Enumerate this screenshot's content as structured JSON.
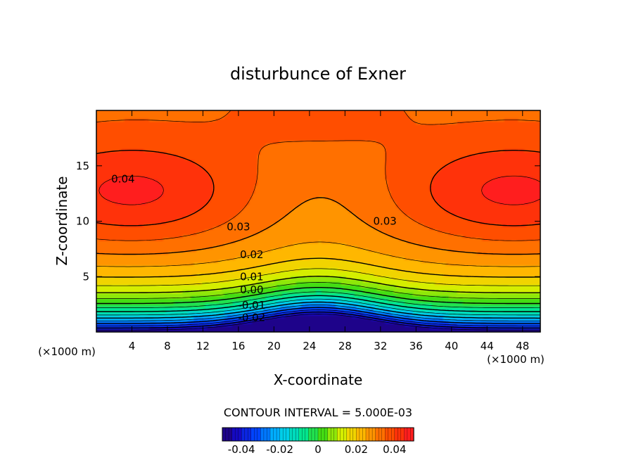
{
  "chart_data": {
    "type": "heatmap",
    "title": "disturbunce of Exner",
    "xlabel": "X-coordinate",
    "ylabel": "Z-coordinate",
    "x_unit": "(×1000 m)",
    "z_unit": "(×1000 m)",
    "xlim": [
      0,
      50
    ],
    "ylim": [
      0,
      20
    ],
    "x_ticks": [
      4,
      8,
      12,
      16,
      20,
      24,
      28,
      32,
      36,
      40,
      44,
      48
    ],
    "y_ticks": [
      5,
      10,
      15
    ],
    "contour_interval_label": "CONTOUR INTERVAL = 5.000E-03",
    "contour_labels": [
      {
        "text": "0.04",
        "x": 3.0,
        "z": 13.8
      },
      {
        "text": "0.03",
        "x": 16.0,
        "z": 9.5
      },
      {
        "text": "0.03",
        "x": 32.5,
        "z": 10.0
      },
      {
        "text": "0.02",
        "x": 17.5,
        "z": 7.0
      },
      {
        "text": "0.01",
        "x": 17.5,
        "z": 5.0
      },
      {
        "text": "0.00",
        "x": 17.5,
        "z": 3.8
      },
      {
        "text": "-0.01",
        "x": 17.5,
        "z": 2.4
      },
      {
        "text": "-0.02",
        "x": 17.5,
        "z": 1.3
      }
    ],
    "field_description_values": {
      "min": -0.05,
      "max": 0.045,
      "peak_left": {
        "x": 6,
        "z": 12.5,
        "value": 0.044
      },
      "peak_right": {
        "x": 46,
        "z": 12.5,
        "value": 0.045
      },
      "min_center": {
        "x": 25,
        "z": 0,
        "value": -0.05
      }
    },
    "colorbar": {
      "ticks": [
        "-0.04",
        "-0.02",
        "0",
        "0.02",
        "0.04"
      ],
      "range": [
        -0.05,
        0.05
      ]
    }
  }
}
